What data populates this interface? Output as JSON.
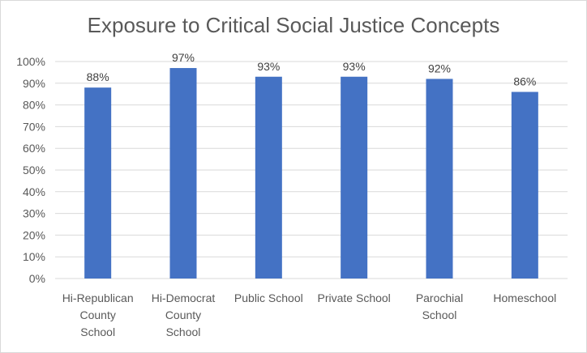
{
  "chart_data": {
    "type": "bar",
    "title": "Exposure to Critical Social Justice Concepts",
    "categories": [
      [
        "Hi-Republican",
        "County",
        "School"
      ],
      [
        "Hi-Democrat",
        "County",
        "School"
      ],
      [
        "Public School"
      ],
      [
        "Private School"
      ],
      [
        "Parochial",
        "School"
      ],
      [
        "Homeschool"
      ]
    ],
    "values": [
      88,
      97,
      93,
      93,
      92,
      86
    ],
    "data_labels": [
      "88%",
      "97%",
      "93%",
      "93%",
      "92%",
      "86%"
    ],
    "yticks": [
      "0%",
      "10%",
      "20%",
      "30%",
      "40%",
      "50%",
      "60%",
      "70%",
      "80%",
      "90%",
      "100%"
    ],
    "ylim": [
      0,
      100
    ],
    "xlabel": "",
    "ylabel": "",
    "grid": true,
    "legend": "none",
    "bar_color": "#4472c4",
    "grid_color": "#d9d9d9"
  }
}
